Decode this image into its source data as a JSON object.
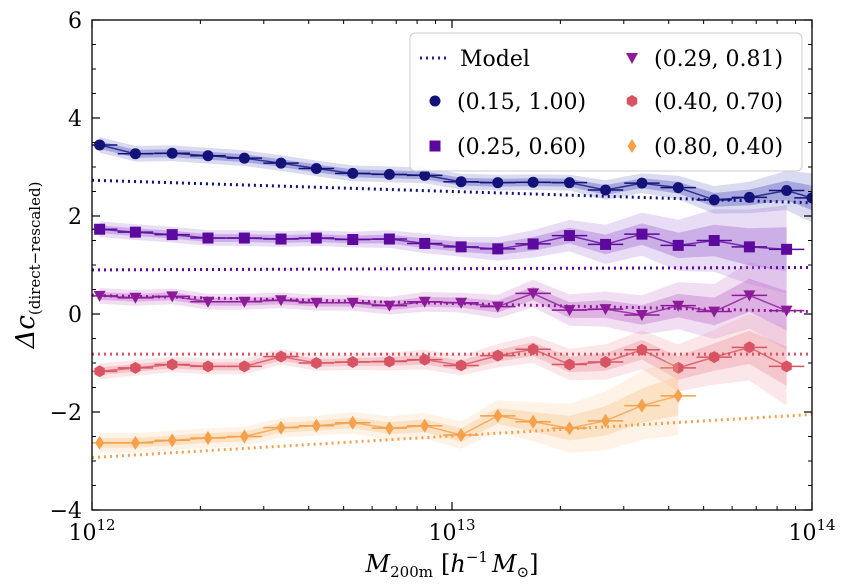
{
  "chart_data": {
    "type": "scatter",
    "title": "",
    "xlabel": "M_200m [h^-1 M_sun]",
    "xlabel_parts": {
      "main": "M",
      "sub": "200m",
      "bracket_open": "[",
      "h": "h",
      "sup": "−1",
      "m": "M",
      "sun": "⊙",
      "bracket_close": "]"
    },
    "ylabel_parts": {
      "main": "Δc",
      "sub": "(direct−rescaled)"
    },
    "xscale": "log",
    "xlim": [
      1000000000000.0,
      100000000000000.0
    ],
    "ylim": [
      -4,
      6
    ],
    "xticks": [
      {
        "value": 1000000000000.0,
        "base": "10",
        "exp": "12"
      },
      {
        "value": 10000000000000.0,
        "base": "10",
        "exp": "13"
      },
      {
        "value": 100000000000000.0,
        "base": "10",
        "exp": "14"
      }
    ],
    "yticks": [
      {
        "value": -4,
        "label": "−4"
      },
      {
        "value": -2,
        "label": "−2"
      },
      {
        "value": 0,
        "label": "0"
      },
      {
        "value": 2,
        "label": "2"
      },
      {
        "value": 4,
        "label": "4"
      },
      {
        "value": 6,
        "label": "6"
      }
    ],
    "legend": {
      "position": "top-right",
      "model_label": "Model",
      "model_color": "#2a1f8f"
    },
    "series": [
      {
        "name": "(0.15, 1.00)",
        "marker": "circle",
        "color": "#121279",
        "band_color": "#6a6ac8",
        "model": [
          2.73,
          2.27
        ],
        "x": [
          1050000000000.0,
          1320000000000.0,
          1670000000000.0,
          2100000000000.0,
          2650000000000.0,
          3350000000000.0,
          4200000000000.0,
          5300000000000.0,
          6700000000000.0,
          8400000000000.0,
          10600000000000.0,
          13400000000000.0,
          16800000000000.0,
          21200000000000.0,
          26700000000000.0,
          33700000000000.0,
          42500000000000.0,
          53500000000000.0,
          67000000000000.0,
          85000000000000.0,
          100000000000000.0
        ],
        "y": [
          3.45,
          3.27,
          3.28,
          3.23,
          3.18,
          3.08,
          2.97,
          2.87,
          2.85,
          2.83,
          2.7,
          2.68,
          2.69,
          2.68,
          2.53,
          2.67,
          2.58,
          2.33,
          2.38,
          2.52,
          2.37
        ],
        "err": [
          0.08,
          0.08,
          0.08,
          0.08,
          0.08,
          0.08,
          0.08,
          0.08,
          0.08,
          0.08,
          0.08,
          0.08,
          0.08,
          0.08,
          0.1,
          0.1,
          0.12,
          0.14,
          0.16,
          0.2,
          0.25
        ]
      },
      {
        "name": "(0.25, 0.60)",
        "marker": "square",
        "color": "#5c0a9e",
        "band_color": "#a878d8",
        "model": [
          0.9,
          0.95
        ],
        "x": [
          1050000000000.0,
          1320000000000.0,
          1670000000000.0,
          2100000000000.0,
          2650000000000.0,
          3350000000000.0,
          4200000000000.0,
          5300000000000.0,
          6700000000000.0,
          8400000000000.0,
          10600000000000.0,
          13400000000000.0,
          16800000000000.0,
          21200000000000.0,
          26700000000000.0,
          33700000000000.0,
          42500000000000.0,
          53500000000000.0,
          67000000000000.0,
          85000000000000.0
        ],
        "y": [
          1.73,
          1.67,
          1.62,
          1.55,
          1.55,
          1.53,
          1.55,
          1.52,
          1.53,
          1.44,
          1.37,
          1.33,
          1.43,
          1.6,
          1.42,
          1.63,
          1.4,
          1.5,
          1.37,
          1.32
        ],
        "err": [
          0.08,
          0.08,
          0.08,
          0.08,
          0.08,
          0.08,
          0.08,
          0.08,
          0.09,
          0.1,
          0.1,
          0.12,
          0.14,
          0.16,
          0.2,
          0.22,
          0.26,
          0.32,
          0.38,
          0.45
        ]
      },
      {
        "name": "(0.29, 0.81)",
        "marker": "triangle-down",
        "color": "#8c1b9a",
        "band_color": "#c87ad0",
        "model": [
          0.38,
          0.05
        ],
        "x": [
          1050000000000.0,
          1320000000000.0,
          1670000000000.0,
          2100000000000.0,
          2650000000000.0,
          3350000000000.0,
          4200000000000.0,
          5300000000000.0,
          6700000000000.0,
          8400000000000.0,
          10600000000000.0,
          13400000000000.0,
          16800000000000.0,
          21200000000000.0,
          26700000000000.0,
          33700000000000.0,
          42500000000000.0,
          53500000000000.0,
          67000000000000.0,
          85000000000000.0
        ],
        "y": [
          0.37,
          0.33,
          0.36,
          0.25,
          0.25,
          0.28,
          0.23,
          0.23,
          0.17,
          0.25,
          0.23,
          0.15,
          0.42,
          0.08,
          0.1,
          -0.02,
          0.17,
          0.05,
          0.38,
          0.07
        ],
        "err": [
          0.08,
          0.08,
          0.08,
          0.08,
          0.08,
          0.08,
          0.08,
          0.08,
          0.09,
          0.1,
          0.1,
          0.12,
          0.14,
          0.16,
          0.18,
          0.2,
          0.24,
          0.28,
          0.34,
          0.4
        ]
      },
      {
        "name": "(0.40, 0.70)",
        "marker": "hexagon",
        "color": "#d85462",
        "band_color": "#eea0a8",
        "model": [
          -0.82,
          -0.82
        ],
        "x": [
          1050000000000.0,
          1320000000000.0,
          1670000000000.0,
          2100000000000.0,
          2650000000000.0,
          3350000000000.0,
          4200000000000.0,
          5300000000000.0,
          6700000000000.0,
          8400000000000.0,
          10600000000000.0,
          13400000000000.0,
          16800000000000.0,
          21200000000000.0,
          26700000000000.0,
          33700000000000.0,
          42500000000000.0,
          53500000000000.0,
          67000000000000.0,
          85000000000000.0
        ],
        "y": [
          -1.17,
          -1.1,
          -1.03,
          -1.07,
          -1.07,
          -0.87,
          -1.0,
          -0.98,
          -0.97,
          -0.93,
          -1.05,
          -0.85,
          -0.72,
          -1.03,
          -0.98,
          -0.73,
          -1.1,
          -0.88,
          -0.68,
          -1.07
        ],
        "err": [
          0.08,
          0.08,
          0.08,
          0.08,
          0.08,
          0.08,
          0.08,
          0.08,
          0.09,
          0.1,
          0.1,
          0.12,
          0.14,
          0.16,
          0.18,
          0.2,
          0.24,
          0.28,
          0.34,
          0.4
        ]
      },
      {
        "name": "(0.80, 0.40)",
        "marker": "diamond",
        "color": "#f5a04a",
        "band_color": "#fbcf9c",
        "model": [
          -2.93,
          -2.05
        ],
        "x": [
          1050000000000.0,
          1320000000000.0,
          1670000000000.0,
          2100000000000.0,
          2650000000000.0,
          3350000000000.0,
          4200000000000.0,
          5300000000000.0,
          6700000000000.0,
          8400000000000.0,
          10600000000000.0,
          13400000000000.0,
          16800000000000.0,
          21200000000000.0,
          26700000000000.0,
          33700000000000.0,
          42500000000000.0
        ],
        "y": [
          -2.63,
          -2.63,
          -2.58,
          -2.53,
          -2.5,
          -2.32,
          -2.28,
          -2.22,
          -2.33,
          -2.28,
          -2.47,
          -2.08,
          -2.2,
          -2.33,
          -2.18,
          -1.87,
          -1.67
        ],
        "err": [
          0.1,
          0.1,
          0.1,
          0.1,
          0.1,
          0.1,
          0.1,
          0.11,
          0.12,
          0.13,
          0.14,
          0.16,
          0.2,
          0.25,
          0.3,
          0.35,
          0.4
        ]
      }
    ]
  }
}
